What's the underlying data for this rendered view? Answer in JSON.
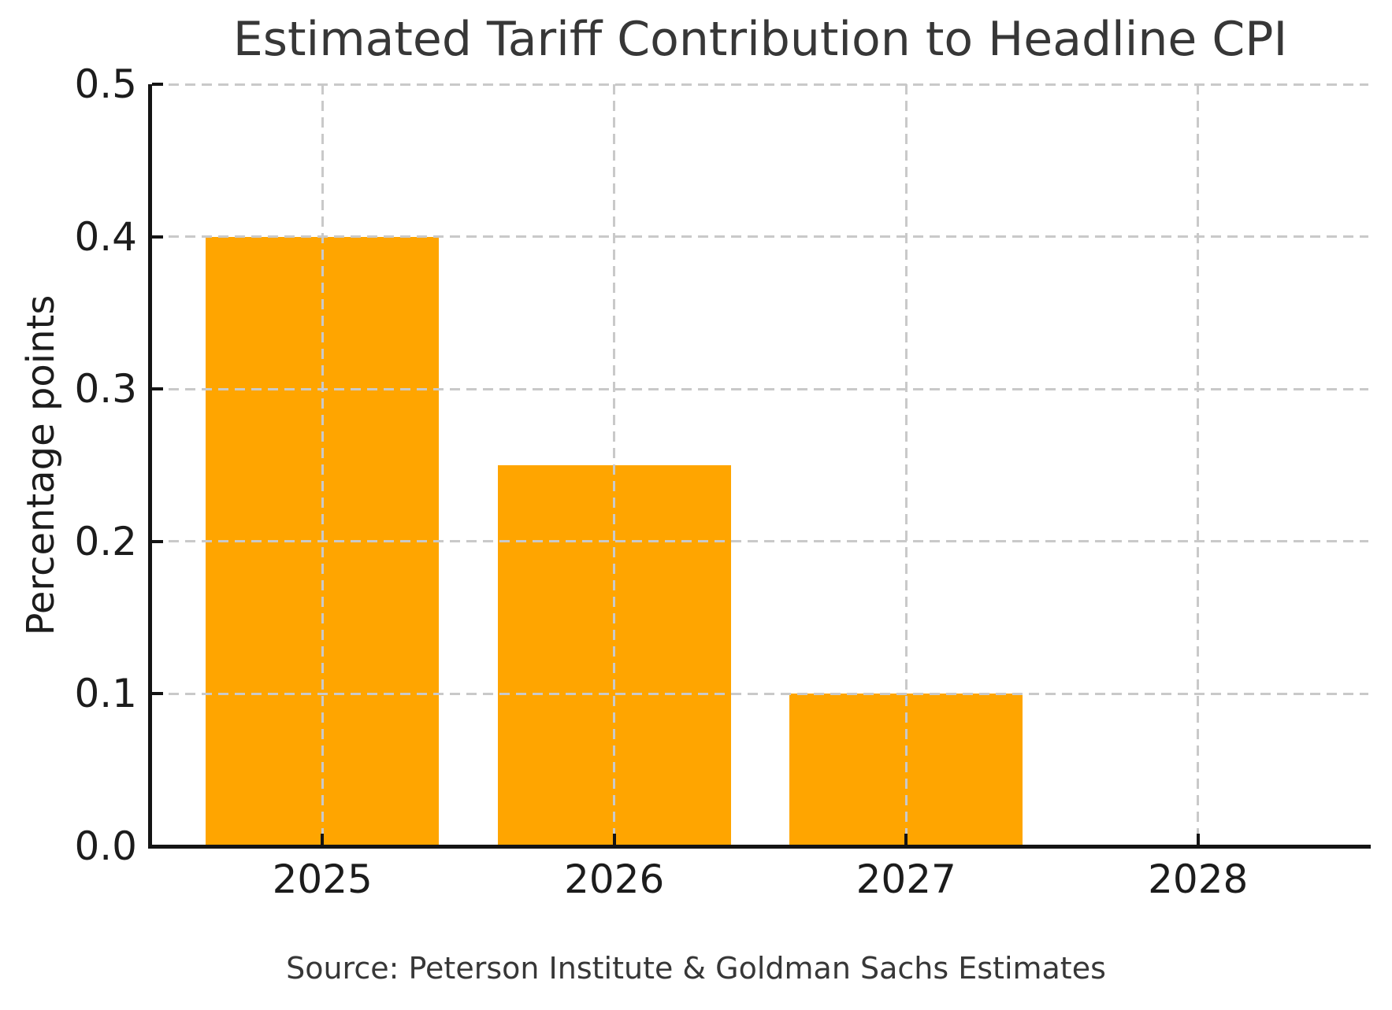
{
  "chart_data": {
    "type": "bar",
    "title": "Estimated Tariff Contribution to Headline CPI",
    "categories": [
      "2025",
      "2026",
      "2027",
      "2028"
    ],
    "values": [
      0.4,
      0.25,
      0.1,
      0.0
    ],
    "xlabel": "",
    "ylabel": "Percentage points",
    "ylim": [
      0,
      0.5
    ],
    "ytick_labels": [
      "0.0",
      "0.1",
      "0.2",
      "0.3",
      "0.4",
      "0.5"
    ],
    "bar_color": "#FFA500",
    "grid": {
      "style": "dashed",
      "color": "#c9c9c9",
      "horizontal": true,
      "vertical": true
    },
    "legend_position": "none",
    "source_note": "Source: Peterson Institute & Goldman Sachs Estimates"
  }
}
